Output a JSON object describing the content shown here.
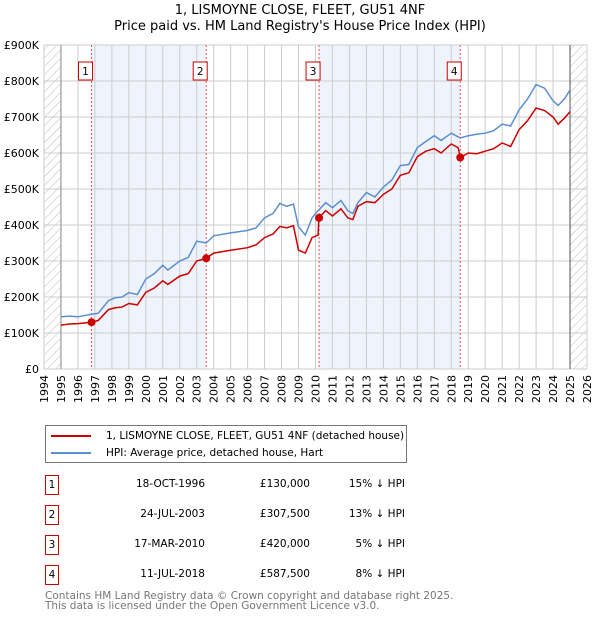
{
  "chart_data": {
    "type": "line",
    "title": "1, LISMOYNE CLOSE, FLEET, GU51 4NF",
    "subtitle": "Price paid vs. HM Land Registry's House Price Index (HPI)",
    "xlim": [
      1994,
      2026
    ],
    "ylim": [
      0,
      900000
    ],
    "x_ticks": [
      "1994",
      "1995",
      "1996",
      "1997",
      "1998",
      "1999",
      "2000",
      "2001",
      "2002",
      "2003",
      "2004",
      "2005",
      "2006",
      "2007",
      "2008",
      "2009",
      "2010",
      "2011",
      "2012",
      "2013",
      "2014",
      "2015",
      "2016",
      "2017",
      "2018",
      "2019",
      "2020",
      "2021",
      "2022",
      "2023",
      "2024",
      "2025",
      "2026"
    ],
    "y_ticks": [
      {
        "v": 0,
        "label": "£0"
      },
      {
        "v": 100000,
        "label": "£100K"
      },
      {
        "v": 200000,
        "label": "£200K"
      },
      {
        "v": 300000,
        "label": "£300K"
      },
      {
        "v": 400000,
        "label": "£400K"
      },
      {
        "v": 500000,
        "label": "£500K"
      },
      {
        "v": 600000,
        "label": "£600K"
      },
      {
        "v": 700000,
        "label": "£700K"
      },
      {
        "v": 800000,
        "label": "£800K"
      },
      {
        "v": 900000,
        "label": "£900K"
      }
    ],
    "grid": true,
    "legend_placement": "below",
    "series": [
      {
        "name": "1, LISMOYNE CLOSE, FLEET, GU51 4NF (detached house)",
        "color": "#cc0000",
        "x": [
          1995,
          1995.5,
          1996,
          1996.8,
          1997.2,
          1997.8,
          1998.2,
          1998.6,
          1999,
          1999.5,
          2000,
          2000.5,
          2001,
          2001.3,
          2002,
          2002.5,
          2003,
          2003.56,
          2004,
          2005,
          2006,
          2006.5,
          2007,
          2007.5,
          2007.9,
          2008.3,
          2008.7,
          2009.0,
          2009.4,
          2009.8,
          2010.15,
          2010.2,
          2010.6,
          2011,
          2011.5,
          2011.9,
          2012.2,
          2012.5,
          2013,
          2013.5,
          2014,
          2014.5,
          2015,
          2015.5,
          2016,
          2016.5,
          2017,
          2017.4,
          2018,
          2018.4,
          2018.55,
          2019,
          2019.5,
          2020,
          2020.5,
          2021,
          2021.5,
          2022,
          2022.5,
          2023,
          2023.5,
          2024,
          2024.3,
          2024.7,
          2025
        ],
        "y": [
          122000,
          125000,
          126000,
          130000,
          135000,
          165000,
          170000,
          172000,
          182000,
          178000,
          213000,
          225000,
          245000,
          235000,
          258000,
          265000,
          300000,
          307500,
          322000,
          330000,
          337000,
          345000,
          365000,
          375000,
          396000,
          392000,
          398000,
          330000,
          322000,
          365000,
          372000,
          420000,
          440000,
          425000,
          445000,
          420000,
          415000,
          452000,
          465000,
          462000,
          485000,
          500000,
          538000,
          545000,
          590000,
          605000,
          612000,
          600000,
          625000,
          615000,
          587500,
          600000,
          598000,
          605000,
          612000,
          628000,
          618000,
          665000,
          690000,
          725000,
          718000,
          700000,
          680000,
          698000,
          715000
        ]
      },
      {
        "name": "HPI: Average price, detached house, Hart",
        "color": "#5b8fd1",
        "x": [
          1995,
          1995.5,
          1996,
          1996.8,
          1997.2,
          1997.8,
          1998.2,
          1998.6,
          1999,
          1999.5,
          2000,
          2000.5,
          2001,
          2001.3,
          2002,
          2002.5,
          2003,
          2003.56,
          2004,
          2005,
          2006,
          2006.5,
          2007,
          2007.5,
          2007.9,
          2008.3,
          2008.7,
          2009.0,
          2009.4,
          2009.8,
          2010.15,
          2010.2,
          2010.6,
          2011,
          2011.5,
          2011.9,
          2012.2,
          2012.5,
          2013,
          2013.5,
          2014,
          2014.5,
          2015,
          2015.5,
          2016,
          2016.5,
          2017,
          2017.4,
          2018,
          2018.4,
          2018.55,
          2019,
          2019.5,
          2020,
          2020.5,
          2021,
          2021.5,
          2022,
          2022.5,
          2023,
          2023.5,
          2024,
          2024.3,
          2024.7,
          2025
        ],
        "y": [
          145000,
          147000,
          145000,
          152000,
          155000,
          190000,
          198000,
          200000,
          212000,
          207000,
          250000,
          265000,
          288000,
          275000,
          300000,
          310000,
          355000,
          350000,
          370000,
          378000,
          385000,
          392000,
          420000,
          432000,
          460000,
          452000,
          458000,
          395000,
          372000,
          420000,
          440000,
          442000,
          462000,
          448000,
          468000,
          440000,
          432000,
          462000,
          490000,
          478000,
          505000,
          525000,
          565000,
          568000,
          615000,
          632000,
          648000,
          635000,
          655000,
          645000,
          642000,
          648000,
          652000,
          655000,
          662000,
          680000,
          675000,
          720000,
          750000,
          790000,
          780000,
          745000,
          732000,
          752000,
          775000
        ]
      }
    ],
    "sales_markers": [
      {
        "label": "1",
        "x": 1996.8,
        "y": 130000
      },
      {
        "label": "2",
        "x": 2003.56,
        "y": 307500
      },
      {
        "label": "3",
        "x": 2010.21,
        "y": 420000
      },
      {
        "label": "4",
        "x": 2018.53,
        "y": 587500
      }
    ],
    "shaded_ranges": [
      [
        1996.8,
        2003.56
      ],
      [
        2010.21,
        2018.53
      ]
    ],
    "forecast_hatch": [
      [
        1994,
        1995
      ],
      [
        2025,
        2026
      ]
    ]
  },
  "title_line1": "1, LISMOYNE CLOSE, FLEET, GU51 4NF",
  "title_line2": "Price paid vs. HM Land Registry's House Price Index (HPI)",
  "legend": {
    "property": "1, LISMOYNE CLOSE, FLEET, GU51 4NF (detached house)",
    "hpi": "HPI: Average price, detached house, Hart"
  },
  "sales": [
    {
      "n": "1",
      "date": "18-OCT-1996",
      "price": "£130,000",
      "hpi": "15% ↓ HPI"
    },
    {
      "n": "2",
      "date": "24-JUL-2003",
      "price": "£307,500",
      "hpi": "13% ↓ HPI"
    },
    {
      "n": "3",
      "date": "17-MAR-2010",
      "price": "£420,000",
      "hpi": "5% ↓ HPI"
    },
    {
      "n": "4",
      "date": "11-JUL-2018",
      "price": "£587,500",
      "hpi": "8% ↓ HPI"
    }
  ],
  "footer": {
    "line1": "Contains HM Land Registry data © Crown copyright and database right 2025.",
    "line2": "This data is licensed under the Open Government Licence v3.0."
  }
}
